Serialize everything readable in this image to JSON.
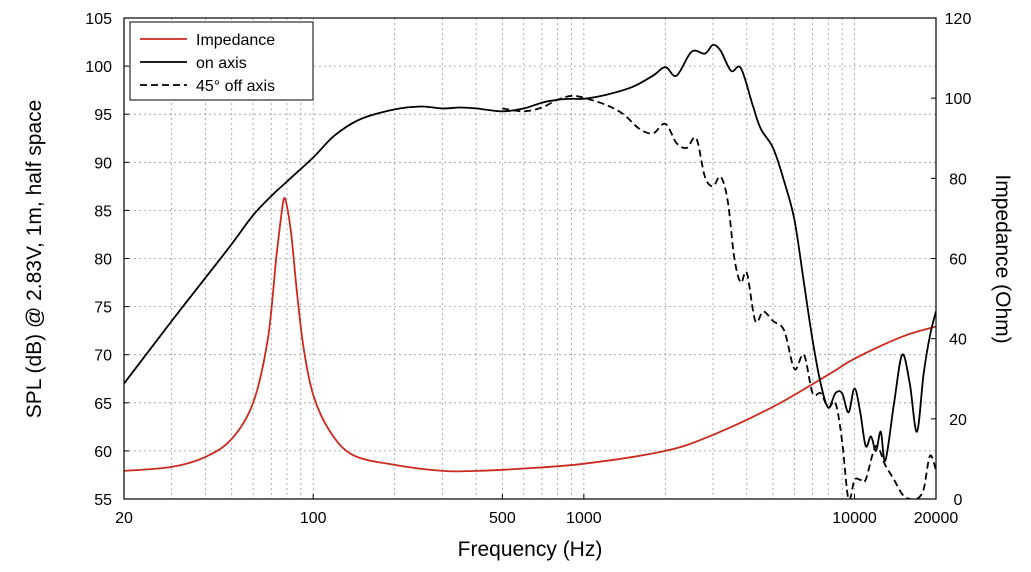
{
  "chart_data": {
    "type": "line",
    "xlabel": "Frequency (Hz)",
    "ylabel_left": "SPL (dB) @ 2.83V, 1m, half space",
    "ylabel_right": "Impedance (Ohm)",
    "x_scale": "log",
    "xlim": [
      20,
      20000
    ],
    "ylim_left": [
      55,
      105
    ],
    "ylim_right": [
      0,
      120
    ],
    "grid": true,
    "legend_position": "top-left",
    "x_tick_labels": [
      "20",
      "100",
      "500",
      "1000",
      "10000",
      "20000"
    ],
    "x_ticks": [
      20,
      100,
      500,
      1000,
      10000,
      20000
    ],
    "y_left_ticks": [
      55,
      60,
      65,
      70,
      75,
      80,
      85,
      90,
      95,
      100,
      105
    ],
    "y_right_ticks": [
      0,
      20,
      40,
      60,
      80,
      100,
      120
    ],
    "series": [
      {
        "name": "Impedance",
        "axis": "right",
        "color": "#cc2a1e",
        "dash": "solid",
        "points": [
          [
            20,
            7
          ],
          [
            30,
            8
          ],
          [
            40,
            10.5
          ],
          [
            50,
            15
          ],
          [
            60,
            24
          ],
          [
            68,
            40
          ],
          [
            73,
            60
          ],
          [
            76,
            70
          ],
          [
            78,
            75
          ],
          [
            80,
            73
          ],
          [
            83,
            66
          ],
          [
            87,
            52
          ],
          [
            92,
            38
          ],
          [
            100,
            26
          ],
          [
            115,
            17
          ],
          [
            140,
            11
          ],
          [
            200,
            8.5
          ],
          [
            300,
            7
          ],
          [
            400,
            7
          ],
          [
            600,
            7.6
          ],
          [
            1000,
            8.8
          ],
          [
            2000,
            12
          ],
          [
            3000,
            16
          ],
          [
            5000,
            23
          ],
          [
            8000,
            31
          ],
          [
            10000,
            35
          ],
          [
            15000,
            40.5
          ],
          [
            20000,
            43
          ]
        ]
      },
      {
        "name": "on axis",
        "axis": "left",
        "color": "#000000",
        "dash": "solid",
        "points": [
          [
            20,
            67
          ],
          [
            30,
            73.5
          ],
          [
            40,
            78
          ],
          [
            50,
            81.5
          ],
          [
            60,
            84.5
          ],
          [
            70,
            86.5
          ],
          [
            80,
            88
          ],
          [
            100,
            90.5
          ],
          [
            120,
            92.8
          ],
          [
            150,
            94.5
          ],
          [
            200,
            95.5
          ],
          [
            250,
            95.8
          ],
          [
            300,
            95.6
          ],
          [
            350,
            95.7
          ],
          [
            400,
            95.6
          ],
          [
            500,
            95.3
          ],
          [
            600,
            95.6
          ],
          [
            700,
            96.2
          ],
          [
            800,
            96.5
          ],
          [
            900,
            96.6
          ],
          [
            1000,
            96.6
          ],
          [
            1200,
            97
          ],
          [
            1500,
            97.8
          ],
          [
            1800,
            99
          ],
          [
            2000,
            99.9
          ],
          [
            2200,
            99
          ],
          [
            2500,
            101.5
          ],
          [
            2800,
            101.3
          ],
          [
            3000,
            102.2
          ],
          [
            3200,
            101.6
          ],
          [
            3500,
            99.5
          ],
          [
            3800,
            99.8
          ],
          [
            4200,
            96
          ],
          [
            4500,
            93.5
          ],
          [
            5000,
            91.5
          ],
          [
            5500,
            88
          ],
          [
            6000,
            84
          ],
          [
            6500,
            77.5
          ],
          [
            7000,
            71.5
          ],
          [
            7500,
            67
          ],
          [
            8000,
            64.5
          ],
          [
            8500,
            66
          ],
          [
            9000,
            66
          ],
          [
            9500,
            64
          ],
          [
            10000,
            66.5
          ],
          [
            10500,
            64
          ],
          [
            11000,
            60.5
          ],
          [
            11500,
            61.5
          ],
          [
            12000,
            60
          ],
          [
            12500,
            62
          ],
          [
            13000,
            59
          ],
          [
            14000,
            65
          ],
          [
            15000,
            70
          ],
          [
            16000,
            67
          ],
          [
            17000,
            62
          ],
          [
            18000,
            68
          ],
          [
            19000,
            72
          ],
          [
            20000,
            74.5
          ]
        ]
      },
      {
        "name": "45° off axis",
        "axis": "left",
        "color": "#000000",
        "dash": "dashed",
        "points": [
          [
            500,
            95.6
          ],
          [
            600,
            95.3
          ],
          [
            700,
            95.7
          ],
          [
            800,
            96.5
          ],
          [
            900,
            96.9
          ],
          [
            1000,
            96.7
          ],
          [
            1200,
            96
          ],
          [
            1400,
            95
          ],
          [
            1600,
            93.5
          ],
          [
            1800,
            93
          ],
          [
            2000,
            94
          ],
          [
            2200,
            92
          ],
          [
            2400,
            91.5
          ],
          [
            2600,
            92.5
          ],
          [
            2800,
            88.5
          ],
          [
            3000,
            87.5
          ],
          [
            3200,
            88.5
          ],
          [
            3400,
            86
          ],
          [
            3600,
            80
          ],
          [
            3800,
            77.5
          ],
          [
            4000,
            78.5
          ],
          [
            4300,
            73.5
          ],
          [
            4600,
            74.5
          ],
          [
            5000,
            73.5
          ],
          [
            5500,
            72.5
          ],
          [
            6000,
            68.5
          ],
          [
            6500,
            70
          ],
          [
            7000,
            66
          ],
          [
            7500,
            66
          ],
          [
            8000,
            64.5
          ],
          [
            8500,
            65
          ],
          [
            9000,
            61
          ],
          [
            9500,
            55
          ],
          [
            10000,
            57
          ],
          [
            10500,
            57
          ],
          [
            11000,
            57
          ],
          [
            12000,
            60.5
          ],
          [
            13000,
            58.5
          ],
          [
            14000,
            57
          ],
          [
            15000,
            55.5
          ],
          [
            16000,
            55
          ],
          [
            17000,
            55
          ],
          [
            18000,
            56
          ],
          [
            19000,
            59.5
          ],
          [
            20000,
            58
          ]
        ]
      }
    ]
  },
  "legend": {
    "items": [
      {
        "label": "Impedance",
        "color": "#cc2a1e",
        "dash": "solid"
      },
      {
        "label": "on axis",
        "color": "#000000",
        "dash": "solid"
      },
      {
        "label": "45° off axis",
        "color": "#000000",
        "dash": "dashed"
      }
    ]
  }
}
